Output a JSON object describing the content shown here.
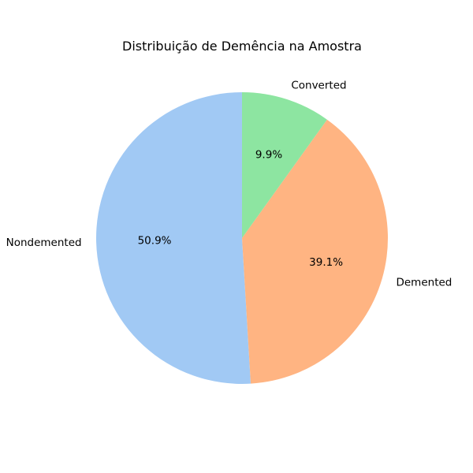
{
  "chart_data": {
    "type": "pie",
    "title": "Distribuição de Demência na Amostra",
    "categories": [
      "Nondemented",
      "Demented",
      "Converted"
    ],
    "values": [
      50.9,
      39.1,
      9.9
    ],
    "value_labels": [
      "50.9%",
      "39.1%",
      "9.9%"
    ],
    "colors": [
      "#a1c9f4",
      "#ffb482",
      "#8de5a1"
    ],
    "start_angle_deg": 90,
    "direction": "counterclockwise"
  }
}
